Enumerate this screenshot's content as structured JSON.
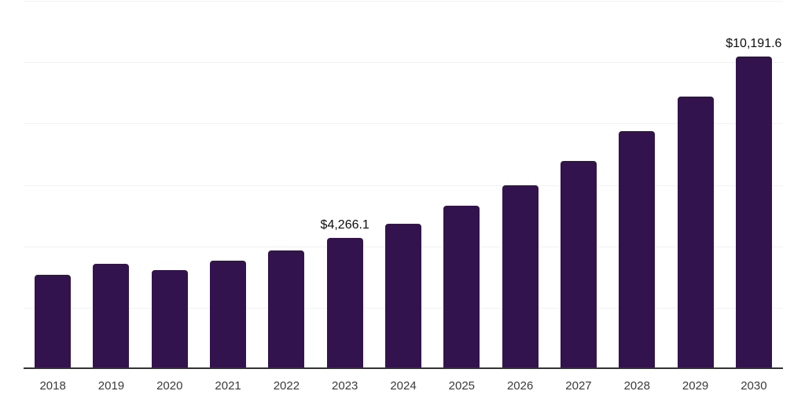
{
  "chart_data": {
    "type": "bar",
    "title": "",
    "xlabel": "",
    "ylabel": "",
    "categories": [
      "2018",
      "2019",
      "2020",
      "2021",
      "2022",
      "2023",
      "2024",
      "2025",
      "2026",
      "2027",
      "2028",
      "2029",
      "2030"
    ],
    "values": [
      3080,
      3420,
      3215,
      3540,
      3855,
      4266.1,
      4735,
      5315,
      5995,
      6780,
      7760,
      8885,
      10191.6
    ],
    "data_labels": {
      "2023": "$4,266.1",
      "2030": "$10,191.6"
    },
    "ylim": [
      0,
      12000
    ],
    "gridline_count": 6,
    "grid": true,
    "legend": false,
    "bar_color": "#33134D",
    "grid_color": "#F2F2F2",
    "axis_color": "#333333",
    "data_label_color": "#0D0D0D",
    "tick_label_color": "#3A3A3A",
    "background_color": "#FFFFFF"
  }
}
